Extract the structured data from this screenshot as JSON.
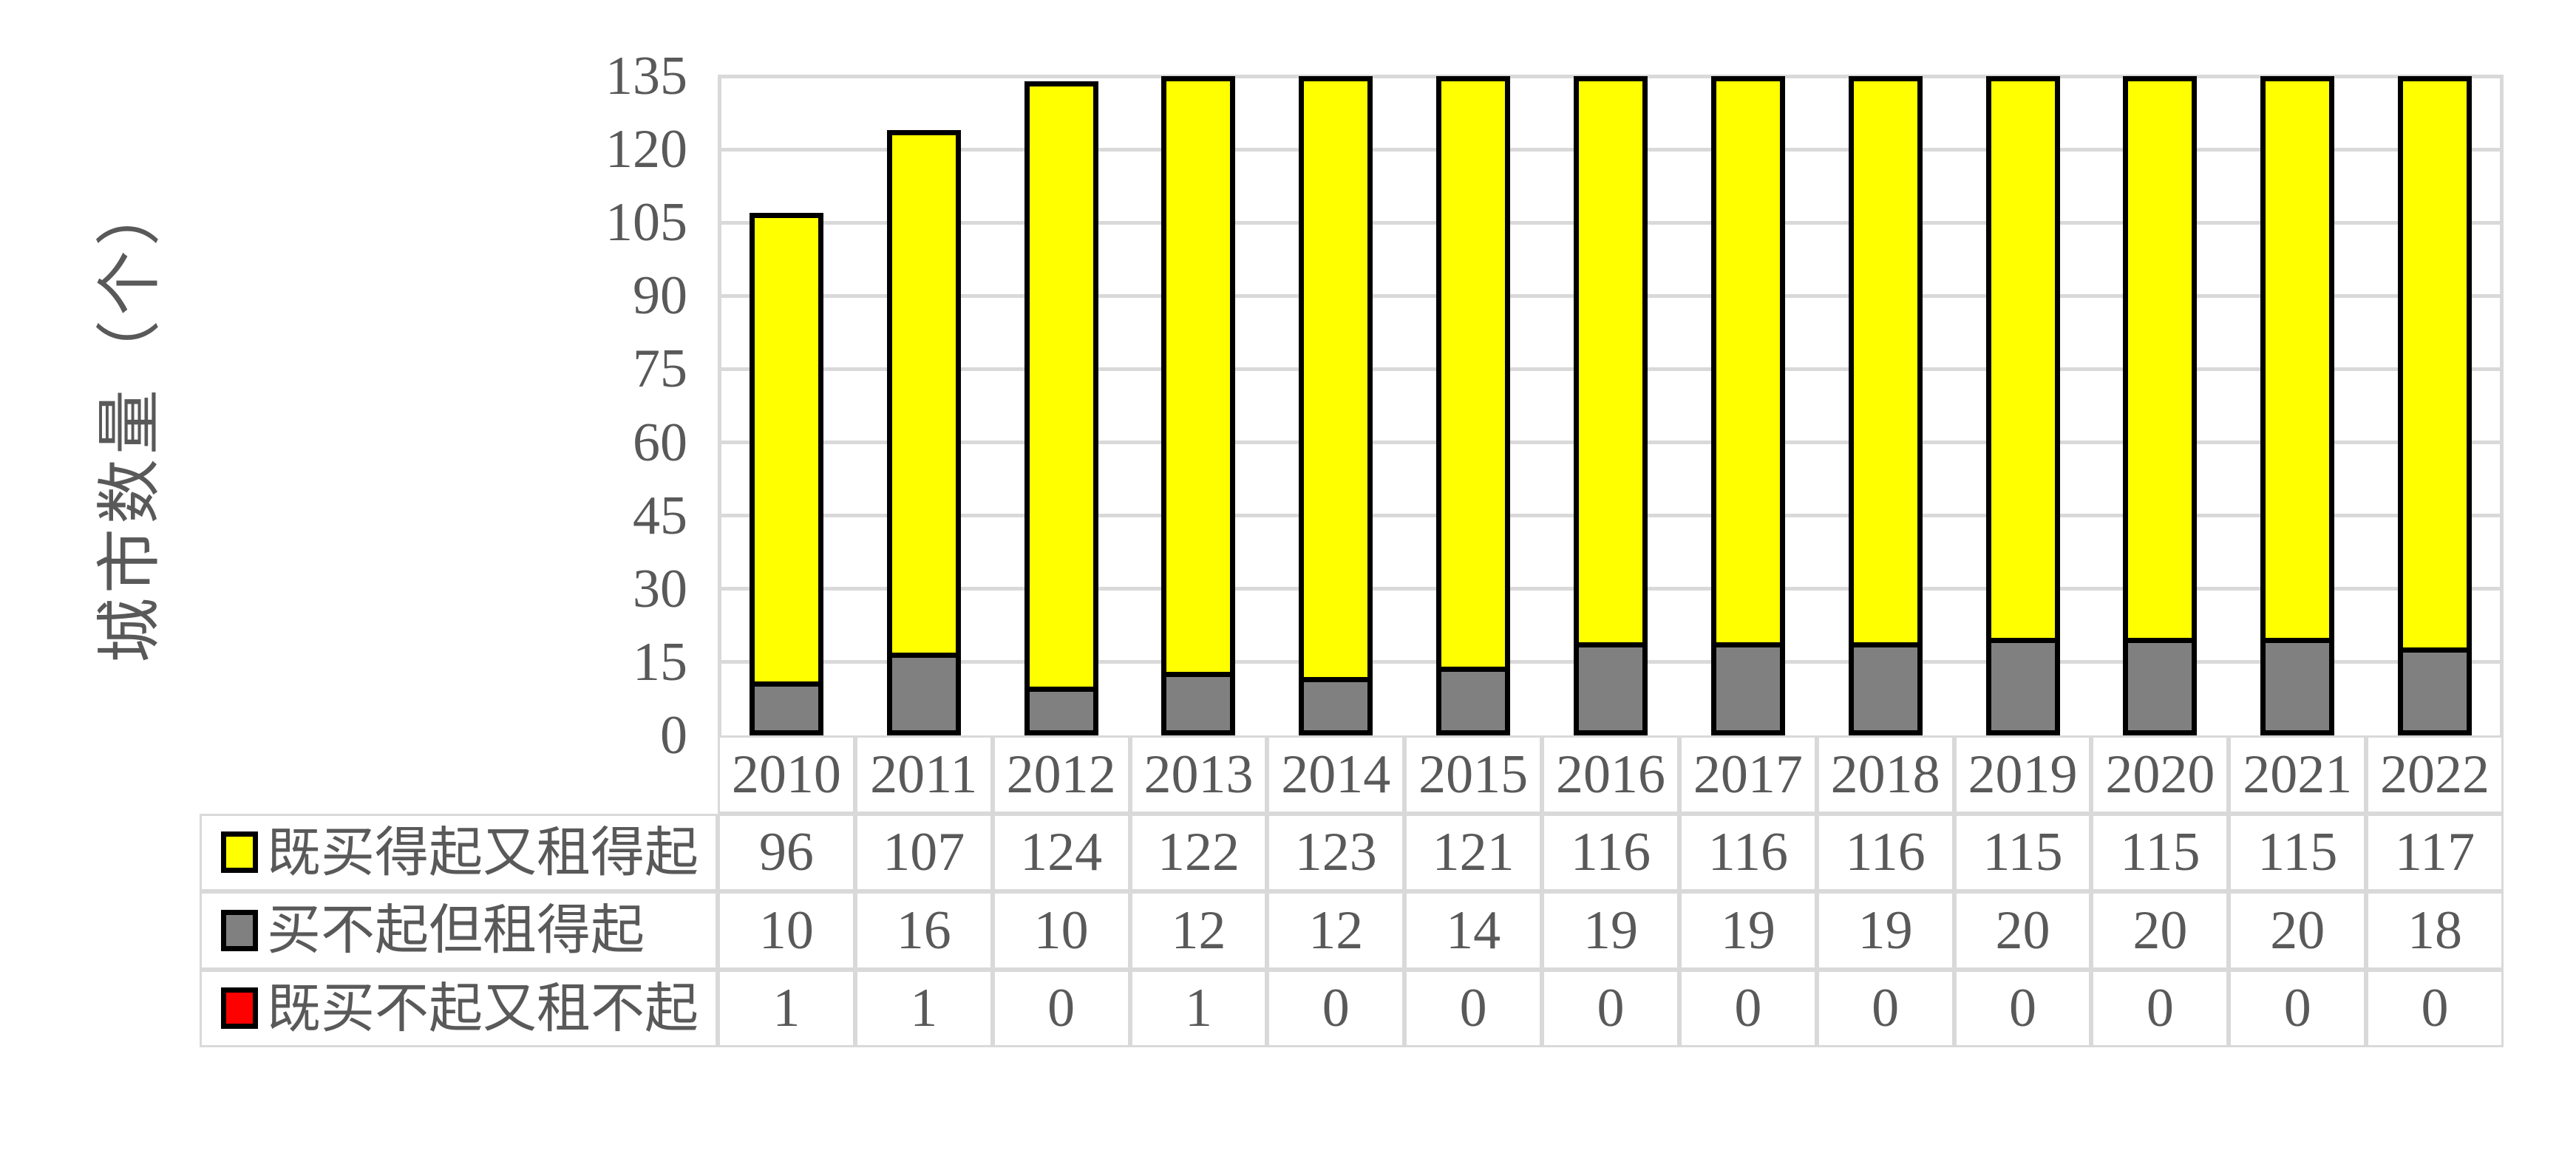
{
  "chart": {
    "y_axis_title": "城市数量（个）",
    "y_ticks": [
      135,
      120,
      105,
      90,
      75,
      60,
      45,
      30,
      15,
      0
    ],
    "ylim": [
      0,
      135
    ],
    "colors": {
      "text": "#595959",
      "gridline": "#d9d9d9",
      "table_border": "#d9d9d9",
      "bar_outline": "#000000",
      "background": "#ffffff"
    }
  },
  "chart_data": {
    "type": "bar",
    "stacked": true,
    "title": "",
    "xlabel": "",
    "ylabel": "城市数量（个）",
    "ylim": [
      0,
      135
    ],
    "grid": true,
    "legend_position": "table-rows-left",
    "categories": [
      "2010",
      "2011",
      "2012",
      "2013",
      "2014",
      "2015",
      "2016",
      "2017",
      "2018",
      "2019",
      "2020",
      "2021",
      "2022"
    ],
    "series": [
      {
        "name": "既买得起又租得起",
        "color": "#ffff00",
        "values": [
          96,
          107,
          124,
          122,
          123,
          121,
          116,
          116,
          116,
          115,
          115,
          115,
          117
        ]
      },
      {
        "name": "买不起但租得起",
        "color": "#808080",
        "values": [
          10,
          16,
          10,
          12,
          12,
          14,
          19,
          19,
          19,
          20,
          20,
          20,
          18
        ]
      },
      {
        "name": "既买不起又租不起",
        "color": "#ff0000",
        "values": [
          1,
          1,
          0,
          1,
          0,
          0,
          0,
          0,
          0,
          0,
          0,
          0,
          0
        ]
      }
    ],
    "stack_order_bottom_to_top": [
      2,
      1,
      0
    ]
  }
}
